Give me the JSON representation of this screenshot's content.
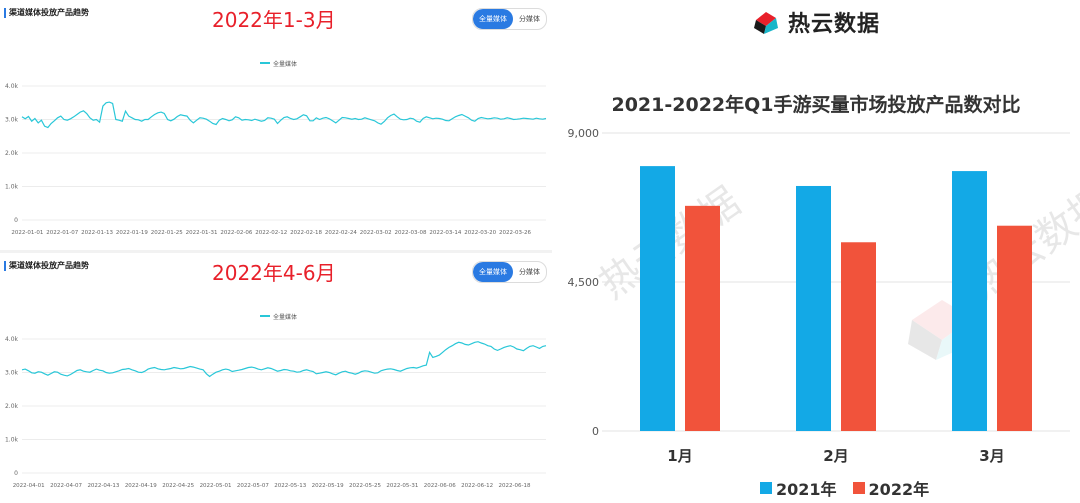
{
  "left_panels": [
    {
      "title": "渠道媒体投放产品趋势",
      "range_label": "2022年1-3月",
      "toggle": {
        "active": "全量媒体",
        "inactive": "分媒体"
      },
      "legend": "全量媒体"
    },
    {
      "title": "渠道媒体投放产品趋势",
      "range_label": "2022年4-6月",
      "toggle": {
        "active": "全量媒体",
        "inactive": "分媒体"
      },
      "legend": "全量媒体"
    }
  ],
  "right": {
    "brand": "热云数据",
    "watermark": "热云数据"
  },
  "colors": {
    "line": "#29c7d8",
    "bar_2021": "#13a9e6",
    "bar_2022": "#f1533b",
    "brand_red": "#e8202a",
    "accent_blue": "#2a7ae2"
  },
  "chart_data": [
    {
      "type": "line",
      "series": [
        {
          "name": "全量媒体"
        }
      ],
      "x_tick_labels": [
        "2022-01-01",
        "2022-01-07",
        "2022-01-13",
        "2022-01-19",
        "2022-01-25",
        "2022-01-31",
        "2022-02-06",
        "2022-02-12",
        "2022-02-18",
        "2022-02-24",
        "2022-03-02",
        "2022-03-08",
        "2022-03-14",
        "2022-03-20",
        "2022-03-26"
      ],
      "y_tick_labels": [
        "0",
        "1.0k",
        "2.0k",
        "3.0k",
        "4.0k"
      ],
      "ylim": [
        0,
        4000
      ],
      "values": [
        3080,
        3020,
        3090,
        2950,
        3030,
        2900,
        2980,
        2800,
        2760,
        2880,
        2960,
        3050,
        3100,
        3000,
        2980,
        3020,
        3080,
        3150,
        3220,
        3260,
        3180,
        3050,
        2980,
        3000,
        2920,
        3400,
        3500,
        3520,
        3480,
        3000,
        2980,
        2950,
        3250,
        3100,
        3050,
        3000,
        2990,
        2950,
        3000,
        3000,
        3080,
        3150,
        3200,
        3220,
        3180,
        3000,
        2960,
        3010,
        3090,
        3140,
        3120,
        3100,
        2980,
        2900,
        2980,
        3050,
        3040,
        3010,
        2950,
        2880,
        2850,
        2980,
        3030,
        3000,
        2960,
        2990,
        3080,
        3050,
        2980,
        3000,
        2990,
        2970,
        3010,
        2980,
        2950,
        2970,
        3050,
        3040,
        3010,
        2880,
        2980,
        3060,
        3080,
        3030,
        3000,
        3020,
        3080,
        3140,
        3110,
        2960,
        2960,
        3050,
        3000,
        3040,
        3060,
        3020,
        2960,
        2900,
        2980,
        3060,
        3050,
        3030,
        3010,
        3030,
        3000,
        3010,
        3050,
        3020,
        2990,
        2960,
        2900,
        2860,
        2940,
        3050,
        3120,
        3160,
        3080,
        3010,
        2990,
        3000,
        3040,
        3020,
        2950,
        2920,
        3030,
        3080,
        3050,
        3020,
        3040,
        3030,
        3010,
        2970,
        2960,
        3020,
        3080,
        3120,
        3150,
        3100,
        3050,
        2980,
        2950,
        3030,
        3060,
        3040,
        3020,
        3030,
        3050,
        3040,
        3010,
        3020,
        3050,
        3030,
        3000,
        3010,
        3020,
        3040,
        3030,
        3020,
        3010,
        3040,
        3020,
        3010,
        3030
      ]
    },
    {
      "type": "line",
      "series": [
        {
          "name": "全量媒体"
        }
      ],
      "x_tick_labels": [
        "2022-04-01",
        "2022-04-07",
        "2022-04-13",
        "2022-04-19",
        "2022-04-25",
        "2022-05-01",
        "2022-05-07",
        "2022-05-13",
        "2022-05-19",
        "2022-05-25",
        "2022-05-31",
        "2022-06-06",
        "2022-06-12",
        "2022-06-18"
      ],
      "y_tick_labels": [
        "0",
        "1.0k",
        "2.0k",
        "3.0k",
        "4.0k"
      ],
      "ylim": [
        0,
        4000
      ],
      "values": [
        3080,
        3100,
        3050,
        2990,
        2980,
        3020,
        3010,
        2960,
        2920,
        2970,
        3020,
        3010,
        2950,
        2920,
        2900,
        2940,
        3000,
        3060,
        3080,
        3040,
        3020,
        3010,
        3060,
        3100,
        3070,
        3050,
        3000,
        2980,
        2990,
        3020,
        3050,
        3090,
        3100,
        3120,
        3080,
        3050,
        3010,
        3000,
        3040,
        3100,
        3130,
        3150,
        3110,
        3090,
        3080,
        3100,
        3120,
        3150,
        3130,
        3110,
        3120,
        3150,
        3180,
        3160,
        3130,
        3100,
        3080,
        2960,
        2880,
        2950,
        3010,
        3040,
        3080,
        3100,
        3080,
        3030,
        3050,
        3070,
        3090,
        3120,
        3150,
        3160,
        3140,
        3100,
        3080,
        3110,
        3140,
        3120,
        3080,
        3040,
        3060,
        3090,
        3080,
        3050,
        3040,
        3010,
        3020,
        3060,
        3080,
        3050,
        3030,
        2960,
        2980,
        3000,
        3020,
        3000,
        2960,
        2930,
        2980,
        3020,
        3040,
        3000,
        2980,
        2950,
        2980,
        3030,
        3050,
        3040,
        3010,
        2980,
        2990,
        3050,
        3080,
        3100,
        3110,
        3090,
        3060,
        3040,
        3080,
        3120,
        3140,
        3150,
        3130,
        3160,
        3200,
        3220,
        3600,
        3450,
        3480,
        3520,
        3600,
        3680,
        3750,
        3800,
        3860,
        3900,
        3880,
        3840,
        3820,
        3860,
        3900,
        3920,
        3880,
        3850,
        3800,
        3780,
        3700,
        3660,
        3700,
        3750,
        3780,
        3800,
        3760,
        3700,
        3680,
        3650,
        3720,
        3780,
        3800,
        3760,
        3720,
        3780,
        3800
      ]
    },
    {
      "type": "bar",
      "title": "2021-2022年Q1手游买量市场投放产品数对比",
      "categories": [
        "1月",
        "2月",
        "3月"
      ],
      "series": [
        {
          "name": "2021年",
          "values": [
            8000,
            7400,
            7850
          ]
        },
        {
          "name": "2022年",
          "values": [
            6800,
            5700,
            6200
          ]
        }
      ],
      "y_tick_labels": [
        "0",
        "4,500",
        "9,000"
      ],
      "ylim": [
        0,
        9000
      ],
      "legend": "bottom"
    }
  ]
}
